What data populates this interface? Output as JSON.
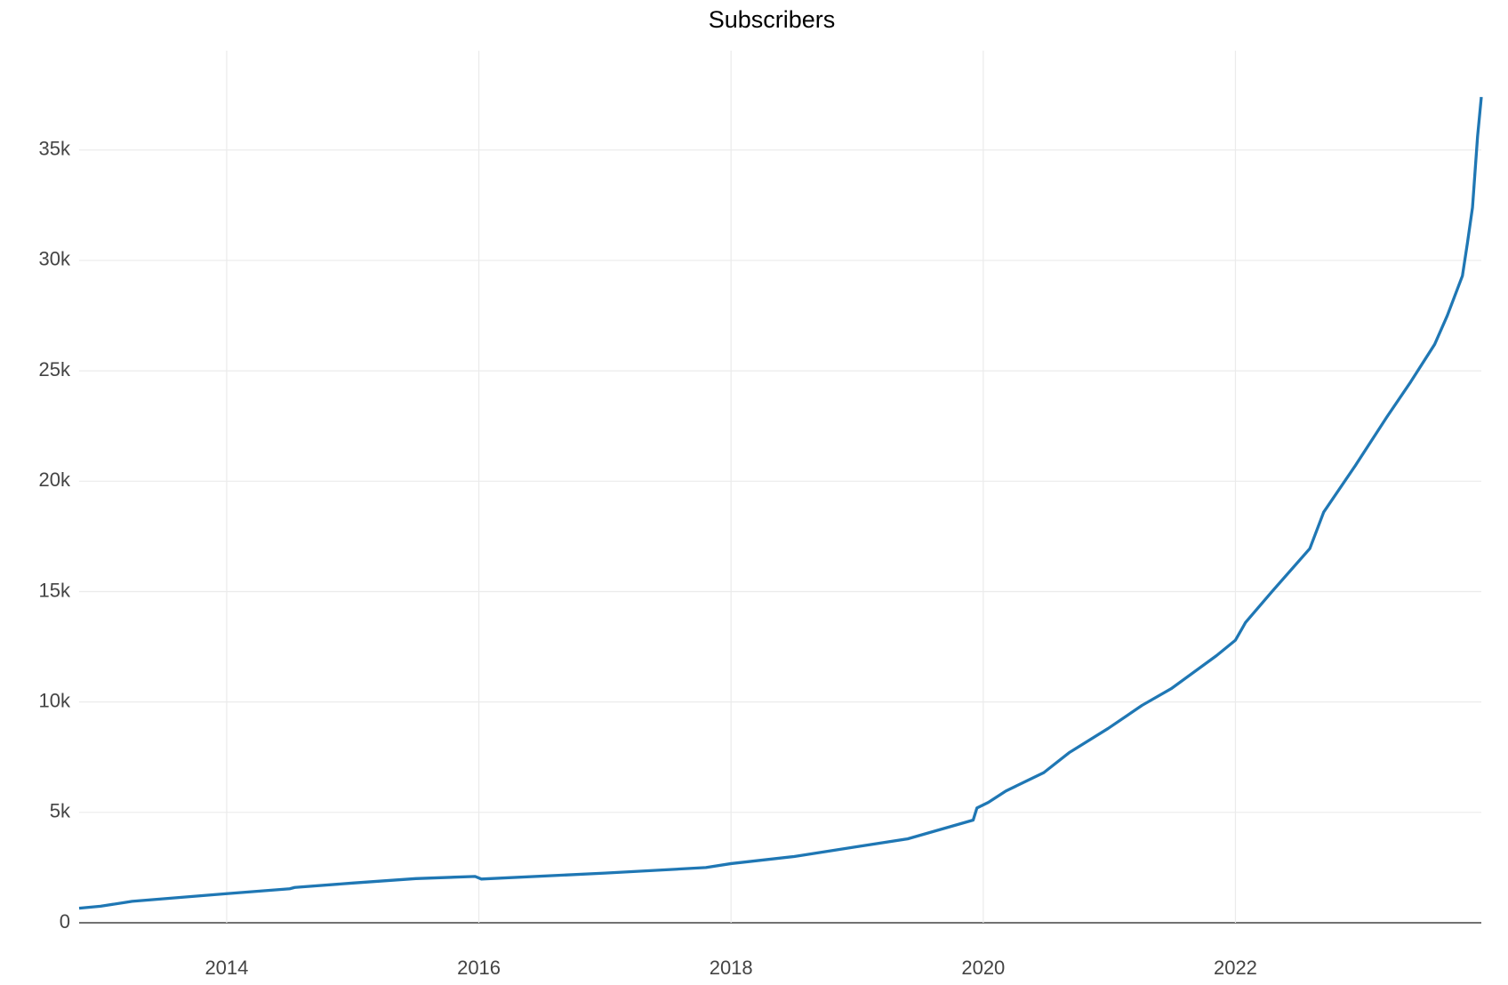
{
  "chart_data": {
    "type": "line",
    "title": "Subscribers",
    "x": [
      2012.83,
      2013.0,
      2013.25,
      2014.0,
      2014.5,
      2014.54,
      2015.0,
      2015.5,
      2015.97,
      2016.02,
      2017.0,
      2017.8,
      2018.0,
      2018.5,
      2019.0,
      2019.4,
      2019.92,
      2019.95,
      2020.04,
      2020.18,
      2020.48,
      2020.68,
      2020.99,
      2021.26,
      2021.49,
      2021.85,
      2022.0,
      2022.08,
      2022.29,
      2022.59,
      2022.7,
      2022.95,
      2023.2,
      2023.39,
      2023.58,
      2023.68,
      2023.8,
      2023.84,
      2023.88,
      2023.92,
      2023.95
    ],
    "series": [
      {
        "name": "Subscribers",
        "color": "#1f77b4",
        "values": [
          660,
          750,
          970,
          1320,
          1540,
          1600,
          1800,
          2000,
          2100,
          1980,
          2250,
          2500,
          2680,
          3000,
          3450,
          3800,
          4650,
          5200,
          5450,
          5970,
          6800,
          7700,
          8800,
          9850,
          10600,
          12100,
          12800,
          13600,
          15000,
          16950,
          18600,
          20700,
          22900,
          24500,
          26200,
          27500,
          29300,
          30800,
          32400,
          35600,
          37400
        ]
      }
    ],
    "xlim": [
      2012.83,
      2023.95
    ],
    "ylim": [
      0,
      39500
    ],
    "xticks": [
      2014,
      2016,
      2018,
      2020,
      2022
    ],
    "yticks": [
      0,
      {
        "value": 5000,
        "label": "5k"
      },
      {
        "value": 10000,
        "label": "10k"
      },
      {
        "value": 15000,
        "label": "15k"
      },
      {
        "value": 20000,
        "label": "20k"
      },
      {
        "value": 25000,
        "label": "25k"
      },
      {
        "value": 30000,
        "label": "30k"
      },
      {
        "value": 35000,
        "label": "35k"
      }
    ],
    "grid": true
  }
}
